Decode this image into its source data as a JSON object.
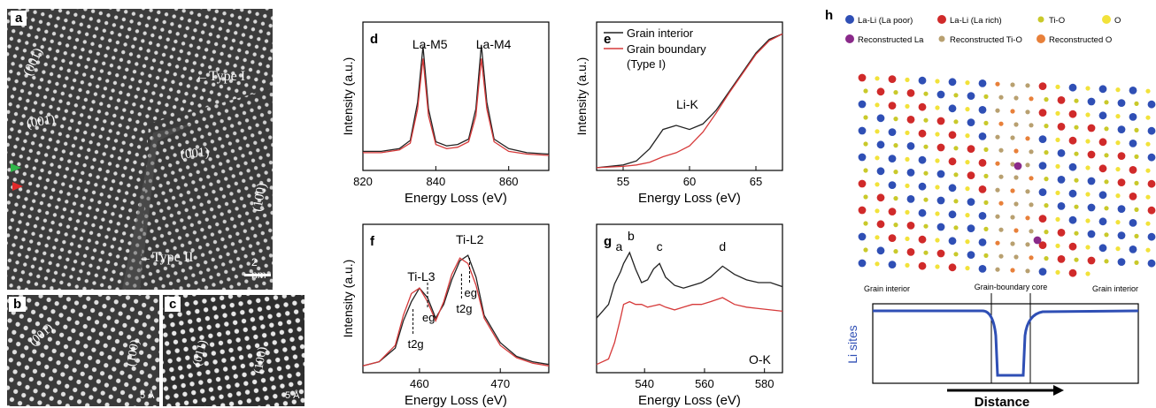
{
  "tem": {
    "a": {
      "label": "a",
      "type1": "Type I",
      "type2": "Type II",
      "scale": "2 nm",
      "planes": [
        "(001)",
        "(001)",
        "(001)",
        "(100)"
      ]
    },
    "b": {
      "label": "b",
      "scale": "5 Å",
      "planes": [
        "(001)",
        "(100)"
      ]
    },
    "c": {
      "label": "c",
      "scale": "5 Å",
      "planes": [
        "(011)",
        "(100)"
      ]
    }
  },
  "colors": {
    "interior": "#222222",
    "boundary": "#d63a3a",
    "li_curve": "#2a4ea8"
  },
  "chart_data": [
    {
      "panel": "d",
      "type": "line",
      "xlabel": "Energy Loss (eV)",
      "ylabel": "Intensity (a.u.)",
      "xlim": [
        820,
        871
      ],
      "xticks": [
        820,
        840,
        860
      ],
      "ylim": [
        0,
        1
      ],
      "peaks": [
        "La-M5",
        "La-M4"
      ],
      "series": [
        {
          "x": [
            820,
            825,
            830,
            833,
            835,
            836.5,
            838,
            840,
            843,
            846,
            849,
            851,
            852.5,
            854,
            856,
            860,
            865,
            871
          ],
          "y": [
            0.14,
            0.14,
            0.16,
            0.22,
            0.5,
            0.91,
            0.45,
            0.21,
            0.18,
            0.19,
            0.23,
            0.45,
            0.92,
            0.5,
            0.23,
            0.16,
            0.13,
            0.12
          ]
        },
        {
          "x": [
            820,
            825,
            830,
            833,
            835,
            836.5,
            838,
            840,
            843,
            846,
            849,
            851,
            852.5,
            854,
            856,
            860,
            865,
            871
          ],
          "y": [
            0.13,
            0.13,
            0.15,
            0.2,
            0.45,
            0.82,
            0.4,
            0.19,
            0.16,
            0.17,
            0.21,
            0.4,
            0.82,
            0.45,
            0.21,
            0.14,
            0.12,
            0.11
          ]
        }
      ]
    },
    {
      "panel": "e",
      "type": "line",
      "xlabel": "Energy Loss (eV)",
      "ylabel": "Intensity (a.u.)",
      "xlim": [
        53,
        67
      ],
      "xticks": [
        55,
        60,
        65
      ],
      "ylim": [
        0,
        1
      ],
      "annotation": "Li-K",
      "legend": [
        "Grain interior",
        "Grain boundary",
        "(Type I)"
      ],
      "series": [
        {
          "x": [
            53,
            55,
            56,
            57,
            58,
            59,
            60,
            61,
            62,
            63,
            64,
            65,
            66,
            67
          ],
          "y": [
            0.02,
            0.04,
            0.07,
            0.16,
            0.3,
            0.33,
            0.3,
            0.34,
            0.44,
            0.58,
            0.72,
            0.86,
            0.96,
            1.0
          ]
        },
        {
          "x": [
            53,
            55,
            56,
            57,
            58,
            59,
            60,
            61,
            62,
            63,
            64,
            65,
            66,
            67
          ],
          "y": [
            0.02,
            0.03,
            0.04,
            0.06,
            0.1,
            0.13,
            0.18,
            0.28,
            0.42,
            0.57,
            0.71,
            0.85,
            0.95,
            1.0
          ]
        }
      ]
    },
    {
      "panel": "f",
      "type": "line",
      "xlabel": "Energy Loss (eV)",
      "ylabel": "Intensity (a.u.)",
      "xlim": [
        453,
        476
      ],
      "xticks": [
        460,
        470
      ],
      "ylim": [
        0,
        1
      ],
      "peaks": [
        "Ti-L3",
        "Ti-L2"
      ],
      "labels": [
        "t2g",
        "eg",
        "t2g",
        "eg"
      ],
      "series": [
        {
          "x": [
            453,
            455,
            457,
            458,
            459,
            460,
            461,
            462,
            463,
            464,
            465,
            466,
            467,
            468,
            470,
            472,
            474,
            476
          ],
          "y": [
            0.05,
            0.08,
            0.18,
            0.38,
            0.52,
            0.62,
            0.55,
            0.4,
            0.5,
            0.68,
            0.82,
            0.86,
            0.7,
            0.42,
            0.22,
            0.12,
            0.08,
            0.06
          ]
        },
        {
          "x": [
            453,
            455,
            457,
            458,
            459,
            460,
            461,
            462,
            463,
            464,
            465,
            466,
            467,
            468,
            470,
            472,
            474,
            476
          ],
          "y": [
            0.05,
            0.08,
            0.2,
            0.42,
            0.58,
            0.62,
            0.52,
            0.38,
            0.52,
            0.72,
            0.84,
            0.8,
            0.64,
            0.4,
            0.2,
            0.11,
            0.07,
            0.05
          ]
        }
      ]
    },
    {
      "panel": "g",
      "type": "line",
      "xlabel": "Energy Loss (eV)",
      "ylabel": "",
      "annotation": "O-K",
      "xlim": [
        524,
        586
      ],
      "xticks": [
        540,
        560,
        580
      ],
      "ylim": [
        0,
        1
      ],
      "peaks": [
        "a",
        "b",
        "c",
        "d"
      ],
      "series": [
        {
          "x": [
            524,
            528,
            530,
            532,
            533,
            535,
            537,
            539,
            541,
            543,
            545,
            547,
            550,
            553,
            556,
            559,
            562,
            566,
            570,
            574,
            578,
            582,
            586
          ],
          "y": [
            0.4,
            0.5,
            0.65,
            0.74,
            0.8,
            0.88,
            0.76,
            0.66,
            0.68,
            0.76,
            0.8,
            0.7,
            0.64,
            0.62,
            0.64,
            0.66,
            0.7,
            0.78,
            0.72,
            0.68,
            0.66,
            0.66,
            0.63
          ]
        },
        {
          "x": [
            524,
            528,
            530,
            532,
            533,
            535,
            537,
            539,
            541,
            543,
            545,
            547,
            550,
            553,
            556,
            559,
            562,
            566,
            570,
            574,
            578,
            582,
            586
          ],
          "y": [
            0.06,
            0.1,
            0.22,
            0.4,
            0.5,
            0.52,
            0.5,
            0.5,
            0.48,
            0.49,
            0.5,
            0.48,
            0.46,
            0.48,
            0.5,
            0.5,
            0.52,
            0.55,
            0.5,
            0.48,
            0.47,
            0.46,
            0.45
          ]
        }
      ]
    }
  ],
  "panel_h": {
    "label": "h",
    "legend": [
      "La-Li (La poor)",
      "La-Li (La rich)",
      "Ti-O",
      "O",
      "Reconstructed La",
      "Reconstructed Ti-O",
      "Reconstructed O"
    ],
    "legend_colors": [
      "#2f4fb5",
      "#d02a2a",
      "#c9c92a",
      "#f2e23a",
      "#8a2a8a",
      "#b8a070",
      "#e8803a"
    ],
    "annot": [
      "Grain interior",
      "Grain-boundary core",
      "Grain interior"
    ],
    "ylabel": "Li sites",
    "xlabel": "Distance"
  }
}
